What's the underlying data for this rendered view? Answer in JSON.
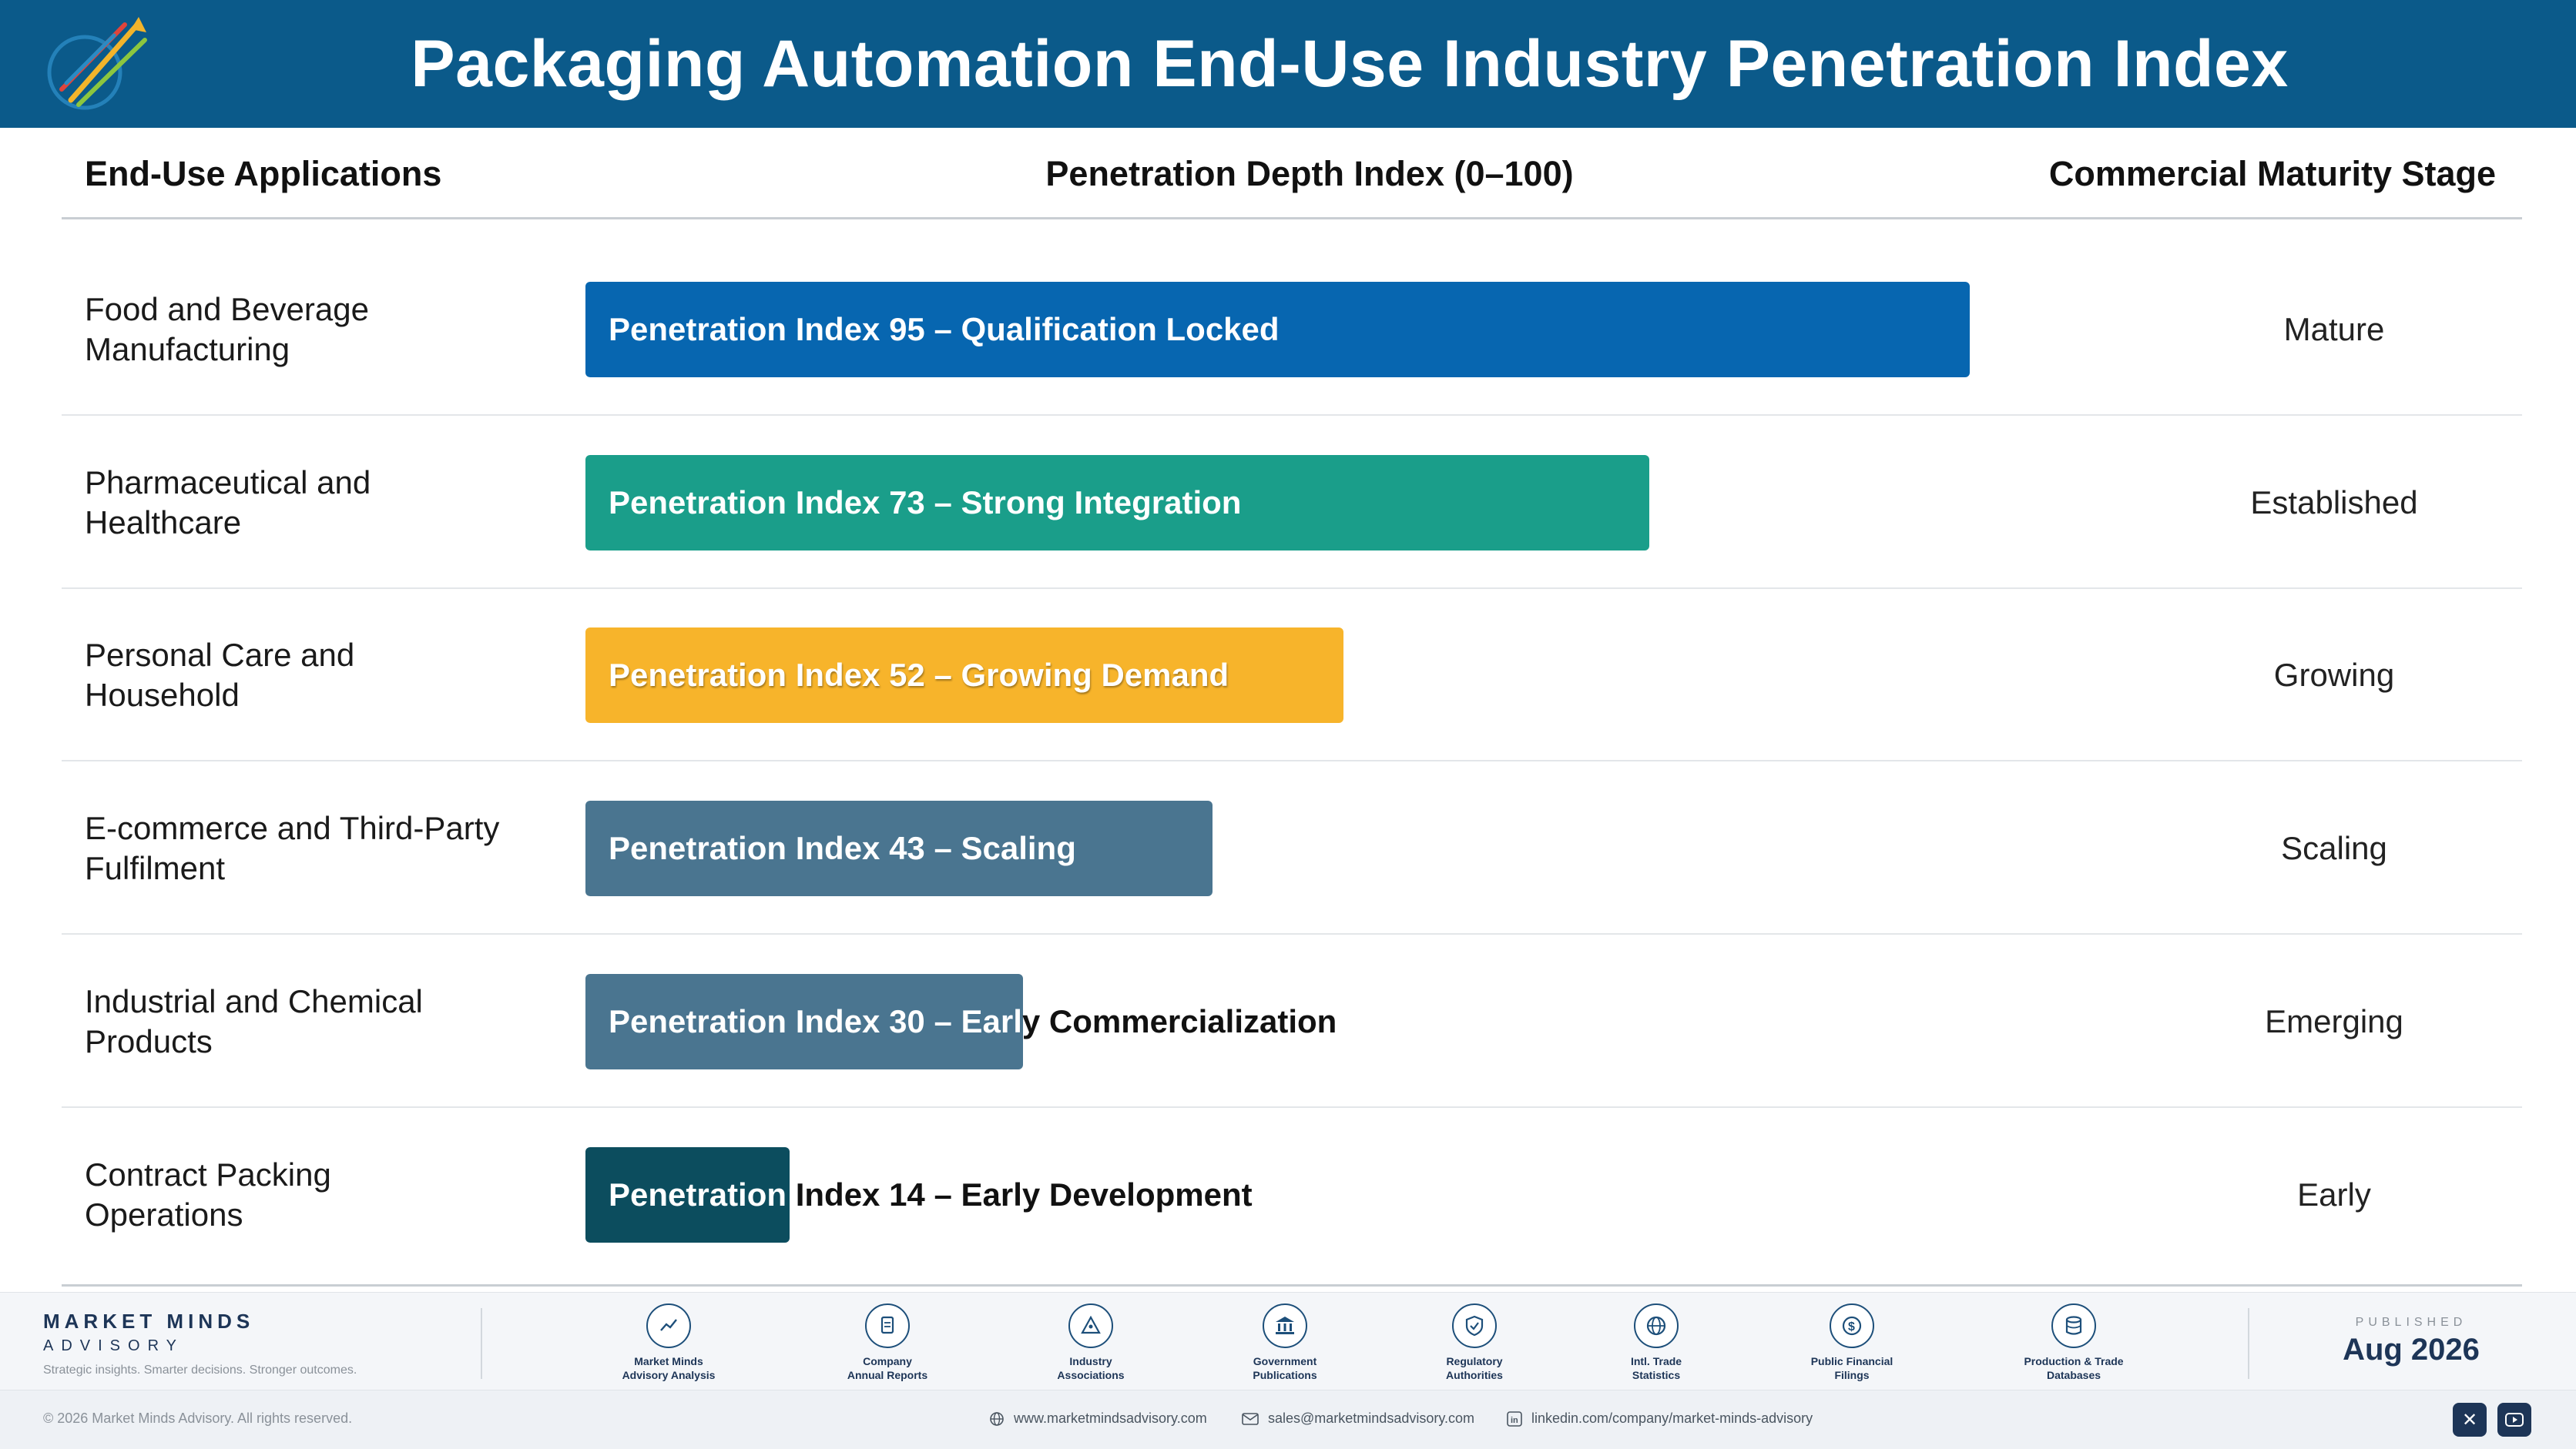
{
  "header": {
    "title": "Packaging Automation End-Use Industry Penetration Index",
    "logo_icon": "rising-arrows-logo-icon"
  },
  "columns": {
    "app": "End-Use Applications",
    "depth": "Penetration Depth Index (0–100)",
    "stage": "Commercial Maturity Stage"
  },
  "chart_data": {
    "type": "bar",
    "orientation": "horizontal",
    "title": "Packaging Automation End-Use Industry Penetration Index",
    "xlabel": "Penetration Depth Index (0–100)",
    "xlim": [
      0,
      100
    ],
    "categories": [
      "Food and Beverage Manufacturing",
      "Pharmaceutical and Healthcare",
      "Personal Care and Household",
      "E-commerce and Third-Party Fulfilment",
      "Industrial and Chemical Products",
      "Contract Packing Operations"
    ],
    "values": [
      95,
      73,
      52,
      43,
      30,
      14
    ],
    "bar_labels": [
      "Penetration Index 95 – Qualification Locked",
      "Penetration Index 73 – Strong Integration",
      "Penetration Index 52 – Growing Demand",
      "Penetration Index 43 – Scaling",
      "Penetration Index 30 – Early Commercialization",
      "Penetration Index 14 – Early Development"
    ],
    "stages": [
      "Mature",
      "Established",
      "Growing",
      "Scaling",
      "Emerging",
      "Early"
    ],
    "colors": [
      "#0766b0",
      "#1a9e8a",
      "#f7b42b",
      "#4a7590",
      "#4a7590",
      "#0c4d5e"
    ]
  },
  "rows_display": [
    {
      "line1": "Food and Beverage",
      "line2": "Manufacturing"
    },
    {
      "line1": "Pharmaceutical and",
      "line2": "Healthcare"
    },
    {
      "line1": "Personal Care and",
      "line2": "Household"
    },
    {
      "line1": "E-commerce and Third-Party",
      "line2": "Fulfilment"
    },
    {
      "line1": "Industrial and Chemical",
      "line2": "Products"
    },
    {
      "line1": "Contract Packing",
      "line2": "Operations"
    }
  ],
  "footer": {
    "brand_name": "MARKET MINDS",
    "brand_sub": "ADVISORY",
    "tagline": "Strategic insights. Smarter decisions. Stronger outcomes.",
    "sources": [
      {
        "line1": "Market Minds",
        "line2": "Advisory Analysis",
        "icon": "trend-line-icon"
      },
      {
        "line1": "Company",
        "line2": "Annual Reports",
        "icon": "document-icon"
      },
      {
        "line1": "Industry",
        "line2": "Associations",
        "icon": "network-triangle-icon"
      },
      {
        "line1": "Government",
        "line2": "Publications",
        "icon": "government-building-icon"
      },
      {
        "line1": "Regulatory",
        "line2": "Authorities",
        "icon": "shield-check-icon"
      },
      {
        "line1": "Intl. Trade",
        "line2": "Statistics",
        "icon": "globe-icon"
      },
      {
        "line1": "Public Financial",
        "line2": "Filings",
        "icon": "dollar-coin-icon"
      },
      {
        "line1": "Production & Trade",
        "line2": "Databases",
        "icon": "database-icon"
      }
    ],
    "published_label": "PUBLISHED",
    "published_date": "Aug 2026",
    "copyright": "© 2026 Market Minds Advisory. All rights reserved.",
    "website": "www.marketmindsadvisory.com",
    "email": "sales@marketmindsadvisory.com",
    "linkedin": "linkedin.com/company/market-minds-advisory",
    "social": [
      "x-icon",
      "youtube-icon"
    ]
  }
}
